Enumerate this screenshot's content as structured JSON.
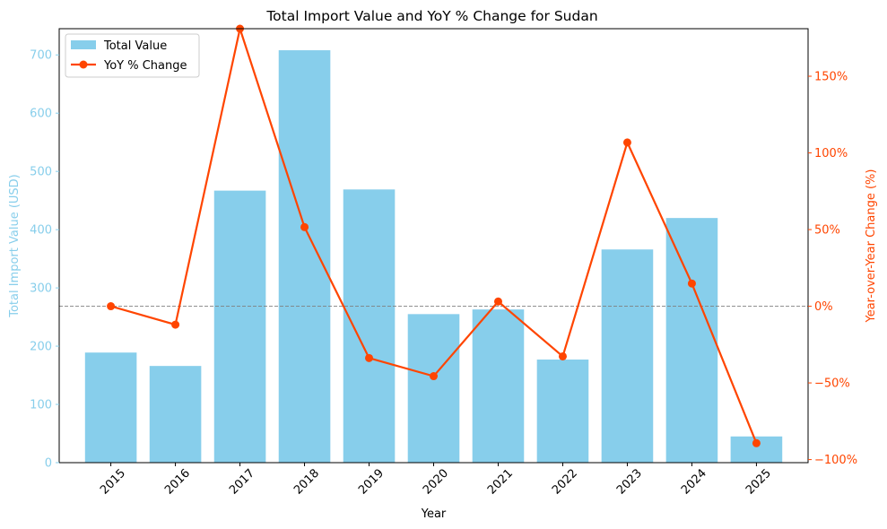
{
  "chart_data": {
    "type": "bar+line",
    "title": "Total Import Value and YoY % Change for Sudan",
    "xlabel": "Year",
    "ylabel_left": "Total Import Value (USD)",
    "ylabel_right": "Year-over-Year Change (%)",
    "categories": [
      "2015",
      "2016",
      "2017",
      "2018",
      "2019",
      "2020",
      "2021",
      "2022",
      "2023",
      "2024",
      "2025"
    ],
    "series": [
      {
        "name": "Total Value",
        "type": "bar",
        "axis": "left",
        "color": "#87ceeb",
        "values": [
          189,
          166,
          467,
          708,
          469,
          255,
          263,
          177,
          366,
          420,
          45
        ]
      },
      {
        "name": "YoY % Change",
        "type": "line",
        "axis": "right",
        "color": "#ff4500",
        "values": [
          0,
          -12,
          181,
          51.6,
          -33.8,
          -45.6,
          3.1,
          -32.7,
          106.8,
          14.8,
          -89.3
        ]
      }
    ],
    "ylim_left": [
      0,
      745
    ],
    "yticks_left": [
      0,
      100,
      200,
      300,
      400,
      500,
      600,
      700
    ],
    "ylim_right": [
      -102,
      181
    ],
    "yticks_right": [
      -100,
      -50,
      0,
      50,
      100,
      150
    ],
    "ytick_right_labels": [
      "−100%",
      "−50%",
      "0%",
      "50%",
      "100%",
      "150%"
    ],
    "reference_line_right": 0,
    "legend_position": "top-left",
    "left_axis_color": "#87ceeb",
    "right_axis_color": "#ff4500"
  }
}
